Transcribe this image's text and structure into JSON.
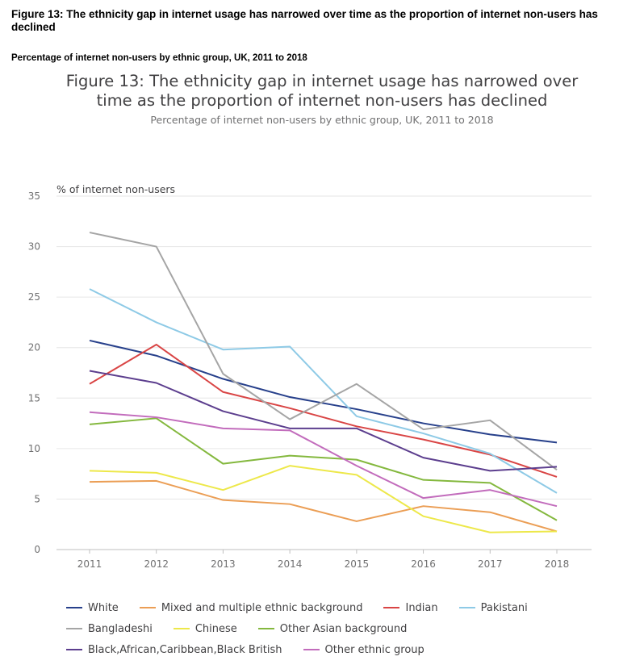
{
  "header": {
    "title": "Figure 13: The ethnicity gap in internet usage has narrowed over time as the proportion of internet non-users has declined",
    "subtitle": "Percentage of internet non-users by ethnic group, UK, 2011 to 2018"
  },
  "figure": {
    "title": "Figure 13: The ethnicity gap in internet usage has narrowed over time as the proportion of internet non-users has declined",
    "subtitle": "Percentage of internet non-users by ethnic group, UK, 2011 to 2018"
  },
  "chart_data": {
    "type": "line",
    "title": "Figure 13: The ethnicity gap in internet usage has narrowed over time as the proportion of internet non-users has declined",
    "subtitle": "Percentage of internet non-users by ethnic group, UK, 2011 to 2018",
    "xlabel": "",
    "ylabel": "% of internet non-users",
    "x": [
      "2011",
      "2012",
      "2013",
      "2014",
      "2015",
      "2016",
      "2017",
      "2018"
    ],
    "ylim": [
      0,
      35
    ],
    "yticks": [
      "0",
      "5",
      "10",
      "15",
      "20",
      "25",
      "30",
      "35"
    ],
    "grid": true,
    "legend_position": "bottom",
    "series": [
      {
        "name": "White",
        "color": "#27408b",
        "values": [
          20.7,
          19.2,
          16.9,
          15.1,
          13.9,
          12.5,
          11.4,
          10.6
        ]
      },
      {
        "name": "Mixed and multiple ethnic background",
        "color": "#eb9e55",
        "values": [
          6.7,
          6.8,
          4.9,
          4.5,
          2.8,
          4.3,
          3.7,
          1.8
        ]
      },
      {
        "name": "Indian",
        "color": "#d94545",
        "values": [
          16.4,
          20.3,
          15.6,
          14.0,
          12.2,
          10.9,
          9.4,
          7.2
        ]
      },
      {
        "name": "Pakistani",
        "color": "#8ecae6",
        "values": [
          25.8,
          22.5,
          19.8,
          20.1,
          13.2,
          11.5,
          9.5,
          5.6
        ]
      },
      {
        "name": "Bangladeshi",
        "color": "#a5a5a5",
        "values": [
          31.4,
          30.0,
          17.4,
          12.9,
          16.4,
          11.9,
          12.8,
          7.9
        ]
      },
      {
        "name": "Chinese",
        "color": "#ede84a",
        "values": [
          7.8,
          7.6,
          5.9,
          8.3,
          7.4,
          3.3,
          1.7,
          1.8
        ]
      },
      {
        "name": "Other Asian background",
        "color": "#84b83e",
        "values": [
          12.4,
          13.0,
          8.5,
          9.3,
          8.9,
          6.9,
          6.6,
          2.9
        ]
      },
      {
        "name": "Black,African,Caribbean,Black British",
        "color": "#5c3e8e",
        "values": [
          17.7,
          16.5,
          13.7,
          12.0,
          12.0,
          9.1,
          7.8,
          8.2
        ]
      },
      {
        "name": "Other ethnic group",
        "color": "#c26cbc",
        "values": [
          13.6,
          13.1,
          12.0,
          11.8,
          8.3,
          5.1,
          5.9,
          4.3
        ]
      }
    ]
  }
}
